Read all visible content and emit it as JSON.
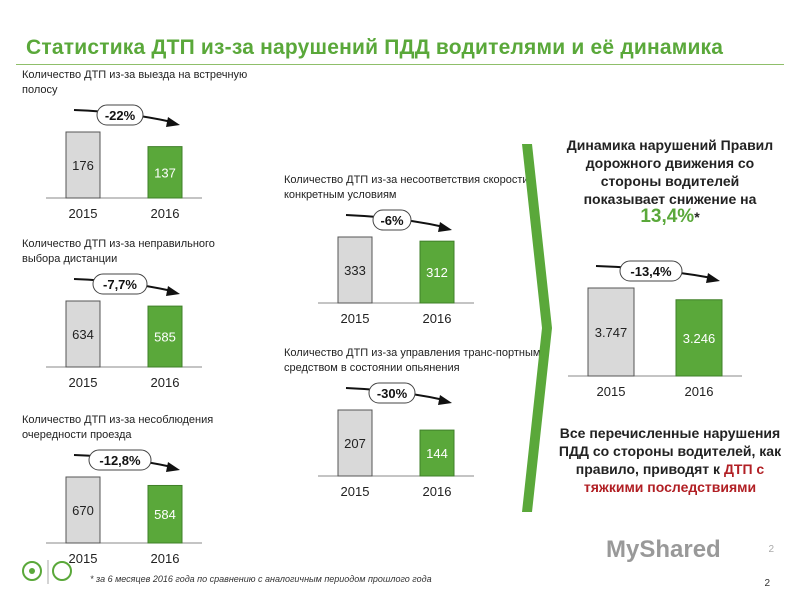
{
  "page": {
    "title": "Статистика ДТП из-за нарушений ПДД водителями и её динамика",
    "footnote": "* за 6 месяцев 2016 года по сравнению с аналогичным периодом прошлого года",
    "page_number": "2",
    "page_number_faint": "2",
    "brand": "MyShared"
  },
  "summary": {
    "text_before": "Динамика нарушений Правил дорожного движения со стороны водителей показывает снижение на ",
    "percent": "13,4%",
    "asterisk": "*"
  },
  "conclusion": {
    "text_before": "Все перечисленные нарушения ПДД со стороны водителей, как правило, приводят к ",
    "highlight": "ДТП с тяжкими последствиями"
  },
  "colors": {
    "bar_2015": "#d9d9d9",
    "bar_2016": "#5aa83a",
    "accent": "#5aa83a",
    "highlight": "#b11f24"
  },
  "chart_data": [
    {
      "type": "bar",
      "title": "Количество ДТП из-за выезда на встречную полосу",
      "categories": [
        "2015",
        "2016"
      ],
      "values": [
        176,
        137
      ],
      "value_labels": [
        "176",
        "137"
      ],
      "change": "-22%"
    },
    {
      "type": "bar",
      "title": "Количество ДТП из-за неправильного выбора дистанции",
      "categories": [
        "2015",
        "2016"
      ],
      "values": [
        634,
        585
      ],
      "value_labels": [
        "634",
        "585"
      ],
      "change": "-7,7%"
    },
    {
      "type": "bar",
      "title": "Количество ДТП из-за несоблюдения очередности проезда",
      "categories": [
        "2015",
        "2016"
      ],
      "values": [
        670,
        584
      ],
      "value_labels": [
        "670",
        "584"
      ],
      "change": "-12,8%"
    },
    {
      "type": "bar",
      "title": "Количество ДТП из-за несоответствия скорости конкретным условиям",
      "categories": [
        "2015",
        "2016"
      ],
      "values": [
        333,
        312
      ],
      "value_labels": [
        "333",
        "312"
      ],
      "change": "-6%"
    },
    {
      "type": "bar",
      "title": "Количество ДТП из-за управления транс-портным средством в состоянии опьянения",
      "categories": [
        "2015",
        "2016"
      ],
      "values": [
        207,
        144
      ],
      "value_labels": [
        "207",
        "144"
      ],
      "change": "-30%"
    },
    {
      "type": "bar",
      "title": "",
      "categories": [
        "2015",
        "2016"
      ],
      "values": [
        3747,
        3246
      ],
      "value_labels": [
        "3.747",
        "3.246"
      ],
      "change": "-13,4%"
    }
  ]
}
